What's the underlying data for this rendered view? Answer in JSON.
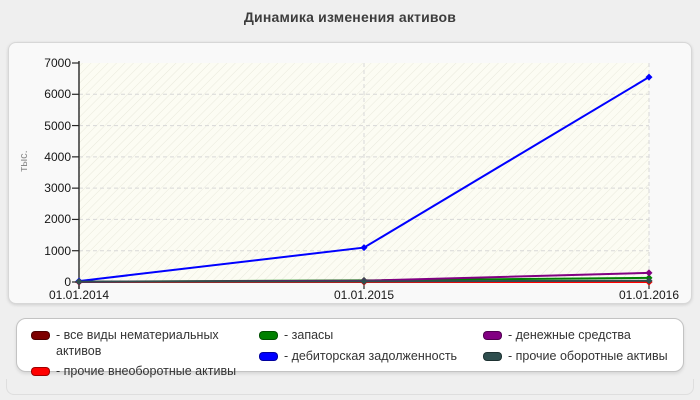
{
  "page": {
    "title": "Динамика изменения активов"
  },
  "chart_data": {
    "type": "line",
    "title": "Динамика изменения активов",
    "ylabel": "тыс.",
    "x": [
      "01.01.2014",
      "01.01.2015",
      "01.01.2016"
    ],
    "ylim": [
      0,
      7000
    ],
    "ytick_step": 1000,
    "grid": true,
    "legend_position": "bottom",
    "series": [
      {
        "name": "все виды нематериальных активов",
        "color": "#7d0000",
        "values": [
          0,
          0,
          0
        ]
      },
      {
        "name": "прочие внеоборотные активы",
        "color": "#ff0000",
        "values": [
          0,
          0,
          0
        ]
      },
      {
        "name": "запасы",
        "color": "#008000",
        "values": [
          10,
          50,
          130
        ]
      },
      {
        "name": "дебиторская задолженность",
        "color": "#0000ff",
        "values": [
          30,
          1100,
          6550
        ]
      },
      {
        "name": "денежные средства",
        "color": "#820082",
        "values": [
          5,
          40,
          290
        ]
      },
      {
        "name": "прочие оборотные активы",
        "color": "#2f4f4f",
        "values": [
          10,
          20,
          40
        ]
      }
    ]
  },
  "legend": {
    "columns": [
      [
        {
          "label": "- все виды нематериальных активов",
          "color": "#7d0000"
        },
        {
          "label": "- прочие внеоборотные активы",
          "color": "#ff0000"
        }
      ],
      [
        {
          "label": "- запасы",
          "color": "#008000"
        },
        {
          "label": "- дебиторская задолженность",
          "color": "#0000ff"
        }
      ],
      [
        {
          "label": "- денежные средства",
          "color": "#820082"
        },
        {
          "label": "- прочие оборотные активы",
          "color": "#2f4f4f"
        }
      ]
    ]
  },
  "style_colors": {
    "plot_background": "#fcfcf3",
    "hatch_line": "#e9e9dc",
    "grid_line": "#d8d8d8",
    "axis_line": "#262626"
  }
}
